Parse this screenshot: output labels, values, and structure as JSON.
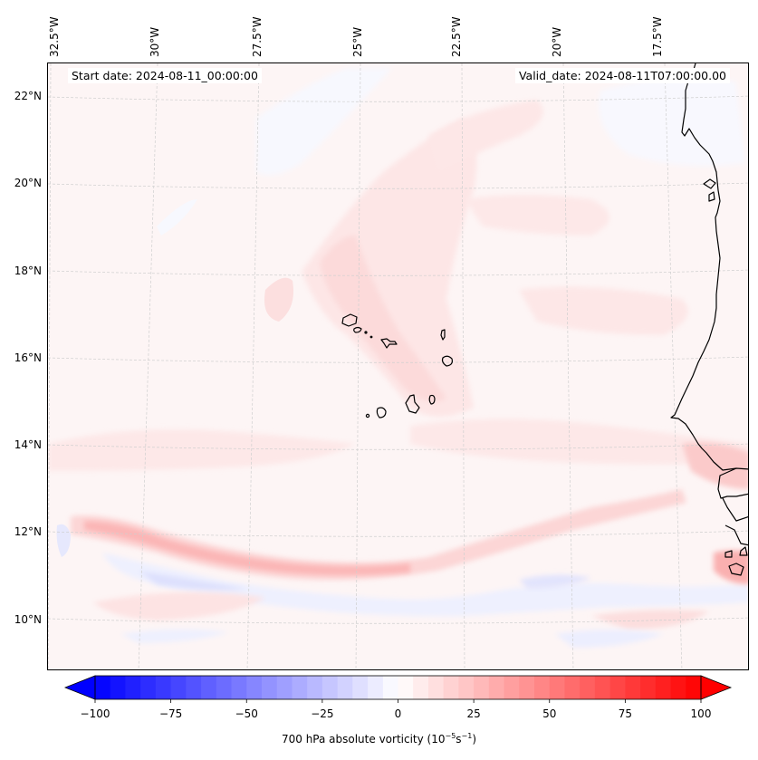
{
  "map": {
    "start_date_label": "Start date: 2024-08-11_00:00:00",
    "valid_date_label": "Valid_date: 2024-08-11T07:00:00.00",
    "longitude_ticks": [
      "32.5°W",
      "30°W",
      "27.5°W",
      "25°W",
      "22.5°W",
      "20°W",
      "17.5°W"
    ],
    "latitude_ticks": [
      "22°N",
      "20°N",
      "18°N",
      "16°N",
      "14°N",
      "12°N",
      "10°N"
    ],
    "extent": {
      "lon_min": -32.6,
      "lon_max": -16.2,
      "lat_min": 8.8,
      "lat_max": 22.8
    },
    "field": "700 hPa absolute vorticity",
    "features": {
      "islands": "Cabo Verde",
      "coastline": "West Africa (Mauritania, Senegal, Gambia, Guinea-Bissau)",
      "vorticity_band": "positive band along ~11.5°N with negative band south of it"
    }
  },
  "colorbar": {
    "label_main": "700 hPa absolute vorticity (10",
    "label_exp1": "−5",
    "label_mid": "s",
    "label_exp2": "−1",
    "label_end": ")",
    "ticks": [
      "−100",
      "−75",
      "−50",
      "−25",
      "0",
      "25",
      "50",
      "75",
      "100"
    ],
    "vmin": -100,
    "vmax": 100,
    "levels": 40,
    "extend": "both",
    "cmap": "bwr",
    "colors": {
      "min": "#0000ff",
      "mid": "#ffffff",
      "max": "#ff0000"
    }
  }
}
